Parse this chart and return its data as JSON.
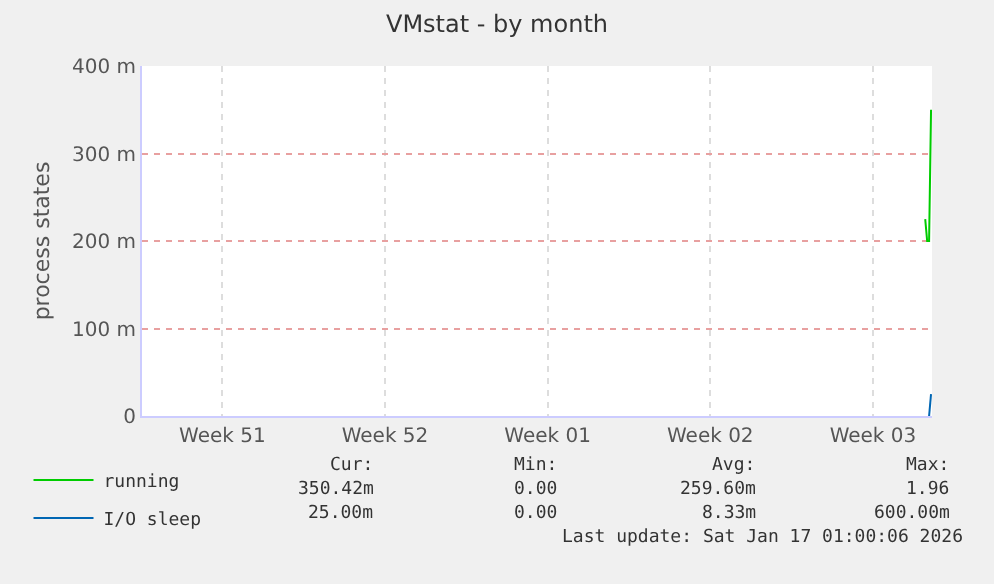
{
  "chart_data": {
    "type": "line",
    "title": "VMstat - by month",
    "ylabel": "process states",
    "xlim": [
      "2025-12-14T01:00",
      "2026-01-17T01:00"
    ],
    "xticks": [
      {
        "value": "2025-12-17T12:00",
        "label": "Week 51"
      },
      {
        "value": "2025-12-24T12:00",
        "label": "Week 52"
      },
      {
        "value": "2025-12-31T12:00",
        "label": "Week 01"
      },
      {
        "value": "2026-01-07T12:00",
        "label": "Week 02"
      },
      {
        "value": "2026-01-14T12:00",
        "label": "Week 03"
      }
    ],
    "ylim": [
      0,
      400
    ],
    "yticks": [
      0,
      {
        "value": 100,
        "label": "100 m"
      },
      {
        "value": 200,
        "label": "200 m"
      },
      {
        "value": 300,
        "label": "300 m"
      },
      {
        "value": 400,
        "label": "400 m"
      }
    ],
    "series": [
      {
        "name": "running",
        "color": "#00cc00",
        "x": [
          "2026-01-16T18:00",
          "2026-01-16T20:00",
          "2026-01-16T22:00",
          "2026-01-17T00:00"
        ],
        "values": [
          225,
          200,
          200,
          350
        ]
      },
      {
        "name": "I/O sleep",
        "color": "#0066b3",
        "x": [
          "2026-01-16T22:00",
          "2026-01-17T00:00"
        ],
        "values": [
          0,
          25
        ]
      }
    ],
    "grid": true,
    "legend": "bottom left",
    "marker": "none",
    "line_style": "solid",
    "annotations": [
      "Cur:",
      "Min:",
      "Avg:",
      "Max:",
      "350.42m",
      "0.00",
      "259.60m",
      "1.96",
      "25.00m",
      "0.00",
      "8.33m",
      "600.00m",
      "Last update: Sat Jan 17 01:00:06 2026"
    ]
  }
}
